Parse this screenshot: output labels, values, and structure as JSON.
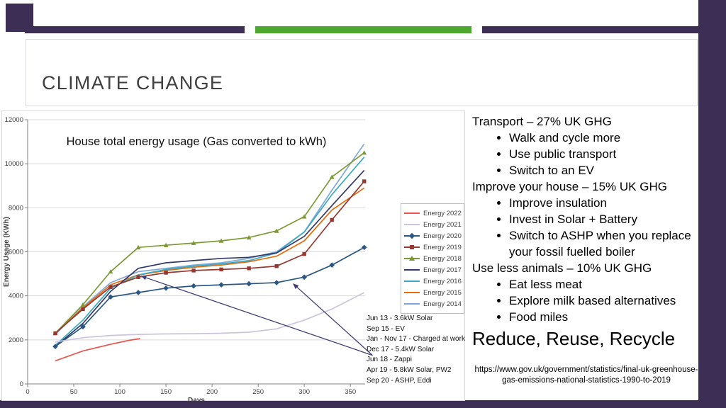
{
  "slide": {
    "title": "CLIMATE CHANGE",
    "colors": {
      "purple": "#3C2E55",
      "green": "#4EA72E",
      "title_text": "#3F3F3F"
    }
  },
  "content": {
    "sections": [
      {
        "heading": "Transport – 27% UK GHG",
        "bullets": [
          "Walk and cycle more",
          "Use public transport",
          "Switch to an EV"
        ]
      },
      {
        "heading": "Improve your house – 15% UK GHG",
        "bullets": [
          "Improve insulation",
          "Invest in Solar + Battery",
          "Switch to ASHP when you replace your fossil fuelled boiler"
        ]
      },
      {
        "heading": "Use less animals – 10% UK GHG",
        "bullets": [
          "Eat less meat",
          "Explore milk based alternatives",
          "Food miles"
        ]
      }
    ],
    "tagline": "Reduce, Reuse, Recycle",
    "link": "https://www.gov.uk/government/statistics/final-uk-greenhouse-gas-emissions-national-statistics-1990-to-2019"
  },
  "chart_data": {
    "type": "line",
    "title": "House total energy usage (Gas converted to kWh)",
    "xlabel": "Days",
    "ylabel": "Energy Usage (KWh)",
    "xlim": [
      0,
      366
    ],
    "ylim": [
      0,
      12000
    ],
    "x_ticks": [
      0,
      50,
      100,
      150,
      200,
      250,
      300,
      350
    ],
    "y_ticks": [
      0,
      2000,
      4000,
      6000,
      8000,
      10000,
      12000
    ],
    "grid": true,
    "legend_position": "right",
    "arrow_color": "#3F3F76",
    "series": [
      {
        "name": "Energy 2022",
        "color": "#E8554D",
        "marker": "none",
        "x": [
          30,
          60,
          90,
          110,
          122
        ],
        "y": [
          1050,
          1500,
          1800,
          1980,
          2060
        ]
      },
      {
        "name": "Energy 2021",
        "color": "#CCC4DC",
        "marker": "none",
        "x": [
          30,
          60,
          90,
          120,
          150,
          180,
          210,
          240,
          270,
          300,
          330,
          365
        ],
        "y": [
          1900,
          2100,
          2200,
          2250,
          2270,
          2280,
          2300,
          2350,
          2500,
          2900,
          3400,
          4150
        ]
      },
      {
        "name": "Energy 2020",
        "color": "#2A5784",
        "marker": "diamond",
        "x": [
          30,
          60,
          90,
          120,
          150,
          180,
          210,
          240,
          270,
          300,
          330,
          365
        ],
        "y": [
          1700,
          2600,
          3950,
          4150,
          4350,
          4450,
          4500,
          4550,
          4600,
          4850,
          5400,
          6200
        ]
      },
      {
        "name": "Energy 2019",
        "color": "#97372F",
        "marker": "square",
        "x": [
          30,
          60,
          90,
          120,
          150,
          180,
          210,
          240,
          270,
          300,
          330,
          365
        ],
        "y": [
          2300,
          3400,
          4400,
          4850,
          5050,
          5150,
          5200,
          5250,
          5350,
          5900,
          7450,
          9200
        ]
      },
      {
        "name": "Energy 2018",
        "color": "#7C9A34",
        "marker": "triangle",
        "x": [
          30,
          60,
          90,
          120,
          150,
          180,
          210,
          240,
          270,
          300,
          330,
          365
        ],
        "y": [
          2300,
          3600,
          5100,
          6200,
          6300,
          6400,
          6500,
          6650,
          6950,
          7600,
          9400,
          10500
        ]
      },
      {
        "name": "Energy 2017",
        "color": "#333A68",
        "marker": "none",
        "x": [
          30,
          60,
          90,
          120,
          150,
          180,
          210,
          240,
          270,
          300,
          330,
          365
        ],
        "y": [
          1700,
          2750,
          4200,
          5250,
          5500,
          5600,
          5700,
          5750,
          5950,
          6700,
          8100,
          9700
        ]
      },
      {
        "name": "Energy 2016",
        "color": "#3BAABF",
        "marker": "none",
        "x": [
          30,
          60,
          90,
          120,
          150,
          180,
          210,
          240,
          270,
          300,
          330,
          365
        ],
        "y": [
          1750,
          2900,
          4350,
          4950,
          5200,
          5350,
          5450,
          5600,
          5950,
          6900,
          8600,
          10300
        ]
      },
      {
        "name": "Energy 2015",
        "color": "#E46C0A",
        "marker": "none",
        "x": [
          30,
          60,
          90,
          120,
          150,
          180,
          210,
          240,
          270,
          300,
          330,
          365
        ],
        "y": [
          2300,
          3450,
          4500,
          4950,
          5150,
          5300,
          5400,
          5550,
          5800,
          6500,
          7900,
          8900
        ]
      },
      {
        "name": "Energy 2014",
        "color": "#7FA8DC",
        "marker": "none",
        "x": [
          30,
          60,
          90,
          120,
          150,
          180,
          210,
          240,
          270,
          300,
          330,
          365
        ],
        "y": [
          2250,
          3500,
          4600,
          5100,
          5250,
          5400,
          5500,
          5700,
          6000,
          6900,
          8800,
          10900
        ]
      }
    ],
    "annotations": [
      "Jun 13 - 3.6kW Solar",
      "Sep 15 - EV",
      "Jan - Nov 17 - Charged at work",
      "Dec 17 - 5.4kW Solar",
      "Jun 18 - Zappi",
      "Apr 19 - 5.8kW Solar, PW2",
      "Sep 20 - ASHP, Eddi"
    ],
    "arrows": [
      {
        "from": [
          374,
          1300
        ],
        "to": [
          123,
          4900
        ]
      },
      {
        "from": [
          374,
          1300
        ],
        "to": [
          288,
          4550
        ]
      }
    ]
  }
}
